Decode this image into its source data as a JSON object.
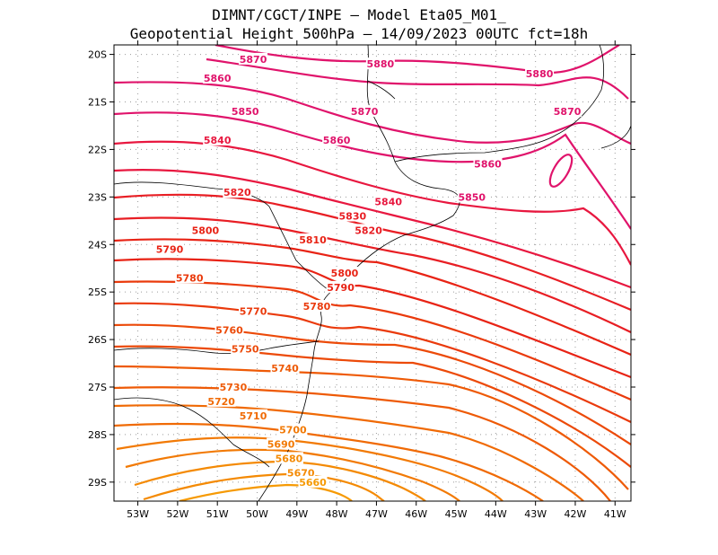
{
  "chart_data": {
    "type": "contour-map",
    "title_line1": "DIMNT/CGCT/INPE –  Model Eta05_M01_",
    "title_line2": "Geopotential Height 500hPa –  14/09/2023 00UTC fct=18h",
    "x_ticks": [
      "53W",
      "52W",
      "51W",
      "50W",
      "49W",
      "48W",
      "47W",
      "46W",
      "45W",
      "44W",
      "43W",
      "42W",
      "41W"
    ],
    "y_ticks": [
      "20S",
      "21S",
      "22S",
      "23S",
      "24S",
      "25S",
      "26S",
      "27S",
      "28S",
      "29S"
    ],
    "contour_levels": [
      5660,
      5670,
      5680,
      5690,
      5700,
      5710,
      5720,
      5730,
      5740,
      5750,
      5760,
      5770,
      5780,
      5790,
      5800,
      5810,
      5820,
      5830,
      5840,
      5850,
      5860,
      5870,
      5880
    ],
    "labels": [
      {
        "text": "5870",
        "lon": -50.1,
        "lat": -20.1,
        "color": "#e0136b"
      },
      {
        "text": "5880",
        "lon": -46.9,
        "lat": -20.2,
        "color": "#e0136b"
      },
      {
        "text": "5880",
        "lon": -42.9,
        "lat": -20.4,
        "color": "#e0136b"
      },
      {
        "text": "5860",
        "lon": -51.0,
        "lat": -20.5,
        "color": "#e0136b"
      },
      {
        "text": "5850",
        "lon": -50.3,
        "lat": -21.2,
        "color": "#e0136b"
      },
      {
        "text": "5870",
        "lon": -47.3,
        "lat": -21.2,
        "color": "#e0136b"
      },
      {
        "text": "5870",
        "lon": -42.2,
        "lat": -21.2,
        "color": "#e0136b"
      },
      {
        "text": "5840",
        "lon": -51.0,
        "lat": -21.8,
        "color": "#e8173f"
      },
      {
        "text": "5860",
        "lon": -48.0,
        "lat": -21.8,
        "color": "#e0136b"
      },
      {
        "text": "5860",
        "lon": -44.2,
        "lat": -22.3,
        "color": "#e0136b"
      },
      {
        "text": "5820",
        "lon": -50.5,
        "lat": -22.9,
        "color": "#e81e24"
      },
      {
        "text": "5840",
        "lon": -46.7,
        "lat": -23.1,
        "color": "#e8173f"
      },
      {
        "text": "5850",
        "lon": -44.6,
        "lat": -23.0,
        "color": "#e0136b"
      },
      {
        "text": "5830",
        "lon": -47.6,
        "lat": -23.4,
        "color": "#e81e24"
      },
      {
        "text": "5820",
        "lon": -47.2,
        "lat": -23.7,
        "color": "#e81e24"
      },
      {
        "text": "5800",
        "lon": -51.3,
        "lat": -23.7,
        "color": "#e82315"
      },
      {
        "text": "5810",
        "lon": -48.6,
        "lat": -23.9,
        "color": "#e82315"
      },
      {
        "text": "5790",
        "lon": -52.2,
        "lat": -24.1,
        "color": "#e82315"
      },
      {
        "text": "5800",
        "lon": -47.8,
        "lat": -24.6,
        "color": "#e82315"
      },
      {
        "text": "5780",
        "lon": -51.7,
        "lat": -24.7,
        "color": "#ea3a0c"
      },
      {
        "text": "5790",
        "lon": -47.9,
        "lat": -24.9,
        "color": "#e82315"
      },
      {
        "text": "5780",
        "lon": -48.5,
        "lat": -25.3,
        "color": "#ea3a0c"
      },
      {
        "text": "5770",
        "lon": -50.1,
        "lat": -25.4,
        "color": "#ea3a0c"
      },
      {
        "text": "5760",
        "lon": -50.7,
        "lat": -25.8,
        "color": "#ec4a09"
      },
      {
        "text": "5750",
        "lon": -50.3,
        "lat": -26.2,
        "color": "#ec4a09"
      },
      {
        "text": "5740",
        "lon": -49.3,
        "lat": -26.6,
        "color": "#ee5a06"
      },
      {
        "text": "5730",
        "lon": -50.6,
        "lat": -27.0,
        "color": "#ee5a06"
      },
      {
        "text": "5720",
        "lon": -50.9,
        "lat": -27.3,
        "color": "#f06a05"
      },
      {
        "text": "5710",
        "lon": -50.1,
        "lat": -27.6,
        "color": "#f06a05"
      },
      {
        "text": "5700",
        "lon": -49.1,
        "lat": -27.9,
        "color": "#f27a05"
      },
      {
        "text": "5690",
        "lon": -49.4,
        "lat": -28.2,
        "color": "#f27a05"
      },
      {
        "text": "5680",
        "lon": -49.2,
        "lat": -28.5,
        "color": "#f48a04"
      },
      {
        "text": "5670",
        "lon": -48.9,
        "lat": -28.8,
        "color": "#f48a04"
      },
      {
        "text": "5660",
        "lon": -48.6,
        "lat": -29.0,
        "color": "#f69a04"
      }
    ],
    "xlim": [
      -53.6,
      -40.6
    ],
    "ylim": [
      -29.4,
      -19.8
    ],
    "xlabel": "",
    "ylabel": ""
  },
  "colors": {
    "frame": "#000000",
    "grid": "#9a9a9a",
    "coast": "#000000"
  }
}
